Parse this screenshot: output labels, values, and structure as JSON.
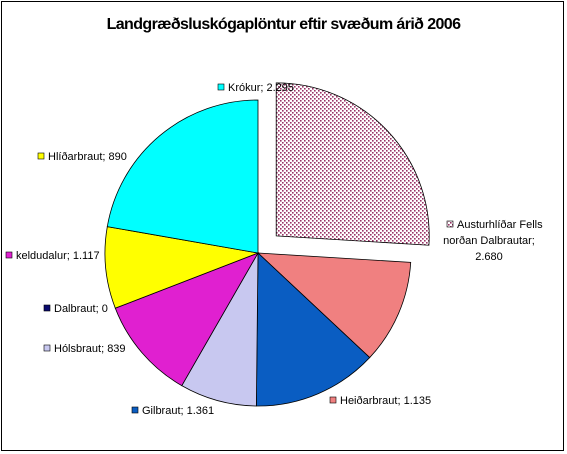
{
  "chart_data": {
    "type": "pie",
    "title": "Landgræðsluskógaplöntur eftir svæðum árið 2006",
    "slices": [
      {
        "label": "Austurhlíðar Fells norðan Dalbrautar",
        "value": 2680,
        "value_text": "2.680",
        "color": "#993366",
        "pattern": "dots",
        "exploded": true
      },
      {
        "label": "Heiðarbraut",
        "value": 1135,
        "value_text": "1.135",
        "color": "#f08080"
      },
      {
        "label": "Gilbraut",
        "value": 1361,
        "value_text": "1.361",
        "color": "#0a5dc2"
      },
      {
        "label": "Hólsbraut",
        "value": 839,
        "value_text": "839",
        "color": "#c8c8f0"
      },
      {
        "label": "Dalbraut",
        "value": 0,
        "value_text": "0",
        "color": "#0a0a6e"
      },
      {
        "label": "keldudalur",
        "value": 1117,
        "value_text": "1.117",
        "color": "#e020d0"
      },
      {
        "label": "Hlíðarbraut",
        "value": 890,
        "value_text": "890",
        "color": "#ffff00"
      },
      {
        "label": "Krókur",
        "value": 2295,
        "value_text": "2.295",
        "color": "#00ffff"
      }
    ],
    "label_separator": "; ",
    "data_labels": [
      "Austurhlíðar Fells",
      "norðan Dalbrautar;",
      "2.680"
    ]
  }
}
